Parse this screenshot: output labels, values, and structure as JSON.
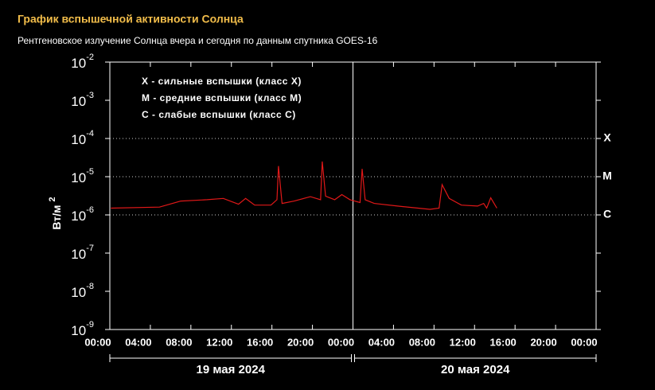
{
  "chart_data": {
    "type": "line",
    "title": "График вспышечной активности Солнца",
    "subtitle": "Рентгеновское излучение Солнца вчера и сегодня по данным спутника GOES-16",
    "ylabel": "Вт/м",
    "ylabel_exponent": "2",
    "log_scale": true,
    "ylim": [
      1e-09,
      0.01
    ],
    "yticks": [
      {
        "value": 0.01,
        "label": "10",
        "exponent": "-2"
      },
      {
        "value": 0.001,
        "label": "10",
        "exponent": "-3"
      },
      {
        "value": 0.0001,
        "label": "10",
        "exponent": "-4"
      },
      {
        "value": 1e-05,
        "label": "10",
        "exponent": "-5"
      },
      {
        "value": 1e-06,
        "label": "10",
        "exponent": "-6"
      },
      {
        "value": 1e-07,
        "label": "10",
        "exponent": "-7"
      },
      {
        "value": 1e-08,
        "label": "10",
        "exponent": "-8"
      },
      {
        "value": 1e-09,
        "label": "10",
        "exponent": "-9"
      }
    ],
    "xlim": [
      0,
      48
    ],
    "xticks": [
      {
        "value": 0,
        "label": "00:00"
      },
      {
        "value": 4,
        "label": "04:00"
      },
      {
        "value": 8,
        "label": "08:00"
      },
      {
        "value": 12,
        "label": "12:00"
      },
      {
        "value": 16,
        "label": "16:00"
      },
      {
        "value": 20,
        "label": "20:00"
      },
      {
        "value": 24,
        "label": "00:00"
      },
      {
        "value": 28,
        "label": "04:00"
      },
      {
        "value": 32,
        "label": "08:00"
      },
      {
        "value": 36,
        "label": "12:00"
      },
      {
        "value": 40,
        "label": "16:00"
      },
      {
        "value": 44,
        "label": "20:00"
      },
      {
        "value": 48,
        "label": "00:00"
      }
    ],
    "dates": [
      {
        "label": "19 мая 2024",
        "from": 0,
        "to": 24
      },
      {
        "label": "20 мая 2024",
        "from": 24,
        "to": 48
      }
    ],
    "class_levels": [
      {
        "value": 0.0001,
        "label": "X"
      },
      {
        "value": 1e-05,
        "label": "M"
      },
      {
        "value": 1e-06,
        "label": "C"
      }
    ],
    "legend_lines": [
      "X - сильные вспышки (класс X)",
      "M - средние вспышки (класс M)",
      "C - слабые вспышки (класс C)"
    ],
    "color": "#e01818",
    "x": [
      0.1,
      4.9,
      7,
      9.6,
      11.2,
      12.7,
      13.4,
      14.3,
      15.9,
      16.5,
      16.65,
      17,
      18.2,
      19.8,
      20.8,
      20.97,
      21.3,
      22.2,
      22.9,
      23.7,
      24.7,
      24.9,
      25.2,
      26.1,
      28.4,
      31.6,
      32.5,
      32.8,
      33.5,
      34.7,
      36.3,
      36.9,
      37.2,
      37.6,
      38.2
    ],
    "values": [
      1.5e-06,
      1.6e-06,
      2.3e-06,
      2.5e-06,
      2.7e-06,
      1.9e-06,
      2.7e-06,
      1.8e-06,
      1.8e-06,
      2.5e-06,
      1.9e-05,
      2e-06,
      2.3e-06,
      3e-06,
      2.5e-06,
      2.5e-05,
      3.1e-06,
      2.5e-06,
      3.4e-06,
      2.5e-06,
      2.1e-06,
      1.6e-05,
      2.5e-06,
      2e-06,
      1.7e-06,
      1.4e-06,
      1.5e-06,
      6.2e-06,
      2.7e-06,
      1.8e-06,
      1.7e-06,
      2e-06,
      1.5e-06,
      2.8e-06,
      1.5e-06
    ]
  }
}
